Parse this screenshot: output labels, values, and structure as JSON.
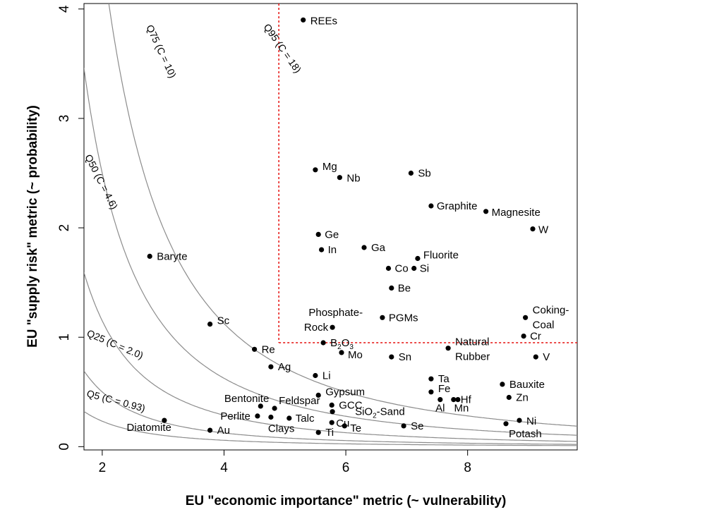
{
  "chart_data": {
    "type": "scatter",
    "xlabel": "EU \"economic importance\" metric (~ vulnerability)",
    "ylabel": "EU \"supply risk\" metric (~ probability)",
    "xlim": [
      1.7,
      9.8
    ],
    "ylim": [
      -0.03,
      4.05
    ],
    "xticks": [
      "2",
      "4",
      "6",
      "8"
    ],
    "yticks": [
      "0",
      "1",
      "2",
      "3",
      "4"
    ],
    "grid": false,
    "threshold_lines": {
      "x": 4.9,
      "y": 0.95,
      "color": "#e8201e",
      "style": "dotted"
    },
    "curves": [
      {
        "label": "Q5 (C = 0.93)",
        "C": 0.93
      },
      {
        "label": "Q25 (C = 2.0)",
        "C": 2.0
      },
      {
        "label": "Q50 (C = 4.6)",
        "C": 4.6
      },
      {
        "label": "Q75 (C = 10)",
        "C": 10
      },
      {
        "label": "Q95 (C = 18)",
        "C": 18
      }
    ],
    "points": [
      {
        "label": "REEs",
        "x": 5.3,
        "y": 3.9
      },
      {
        "label": "Mg",
        "x": 5.5,
        "y": 2.53
      },
      {
        "label": "Nb",
        "x": 5.9,
        "y": 2.46
      },
      {
        "label": "Sb",
        "x": 7.07,
        "y": 2.5
      },
      {
        "label": "Graphite",
        "x": 7.4,
        "y": 2.2
      },
      {
        "label": "Magnesite",
        "x": 8.3,
        "y": 2.15
      },
      {
        "label": "W",
        "x": 9.07,
        "y": 1.99
      },
      {
        "label": "Ge",
        "x": 5.55,
        "y": 1.94
      },
      {
        "label": "Ga",
        "x": 6.3,
        "y": 1.82
      },
      {
        "label": "In",
        "x": 5.6,
        "y": 1.8
      },
      {
        "label": "Fluorite",
        "x": 7.18,
        "y": 1.72
      },
      {
        "label": "Co",
        "x": 6.7,
        "y": 1.63
      },
      {
        "label": "Si",
        "x": 7.12,
        "y": 1.63
      },
      {
        "label": "Baryte",
        "x": 2.78,
        "y": 1.74
      },
      {
        "label": "Be",
        "x": 6.75,
        "y": 1.45
      },
      {
        "label": "Phosphate-Rock",
        "x": 5.78,
        "y": 1.09
      },
      {
        "label": "PGMs",
        "x": 6.6,
        "y": 1.18
      },
      {
        "label": "Coking-Coal",
        "x": 8.95,
        "y": 1.18
      },
      {
        "label": "Cr",
        "x": 8.92,
        "y": 1.01
      },
      {
        "label": "Sc",
        "x": 3.77,
        "y": 1.12
      },
      {
        "label": "B2O3",
        "x": 5.63,
        "y": 0.95
      },
      {
        "label": "Natural Rubber",
        "x": 7.68,
        "y": 0.9
      },
      {
        "label": "Re",
        "x": 4.5,
        "y": 0.89
      },
      {
        "label": "Mo",
        "x": 5.93,
        "y": 0.86
      },
      {
        "label": "Sn",
        "x": 6.75,
        "y": 0.82
      },
      {
        "label": "V",
        "x": 9.12,
        "y": 0.82
      },
      {
        "label": "Ag",
        "x": 4.77,
        "y": 0.73
      },
      {
        "label": "Li",
        "x": 5.5,
        "y": 0.65
      },
      {
        "label": "Ta",
        "x": 7.4,
        "y": 0.62
      },
      {
        "label": "Bauxite",
        "x": 8.57,
        "y": 0.57
      },
      {
        "label": "Fe",
        "x": 7.4,
        "y": 0.5
      },
      {
        "label": "Gypsum",
        "x": 5.55,
        "y": 0.47
      },
      {
        "label": "Zn",
        "x": 8.68,
        "y": 0.45
      },
      {
        "label": "Bentonite",
        "x": 4.6,
        "y": 0.37
      },
      {
        "label": "Feldspar",
        "x": 4.83,
        "y": 0.35
      },
      {
        "label": "GCC",
        "x": 5.77,
        "y": 0.38
      },
      {
        "label": "Al",
        "x": 7.55,
        "y": 0.43
      },
      {
        "label": "Hf",
        "x": 7.77,
        "y": 0.43
      },
      {
        "label": "Mn",
        "x": 7.84,
        "y": 0.43
      },
      {
        "label": "Perlite",
        "x": 4.55,
        "y": 0.28
      },
      {
        "label": "Clays",
        "x": 4.77,
        "y": 0.27
      },
      {
        "label": "Talc",
        "x": 5.07,
        "y": 0.26
      },
      {
        "label": "SiO2-Sand",
        "x": 5.78,
        "y": 0.32
      },
      {
        "label": "Cu",
        "x": 5.77,
        "y": 0.22
      },
      {
        "label": "Te",
        "x": 5.98,
        "y": 0.19
      },
      {
        "label": "Se",
        "x": 6.95,
        "y": 0.19
      },
      {
        "label": "Potash",
        "x": 8.63,
        "y": 0.21
      },
      {
        "label": "Ni",
        "x": 8.85,
        "y": 0.24
      },
      {
        "label": "Diatomite",
        "x": 3.02,
        "y": 0.24
      },
      {
        "label": "Au",
        "x": 3.77,
        "y": 0.15
      },
      {
        "label": "Ti",
        "x": 5.55,
        "y": 0.13
      }
    ]
  }
}
